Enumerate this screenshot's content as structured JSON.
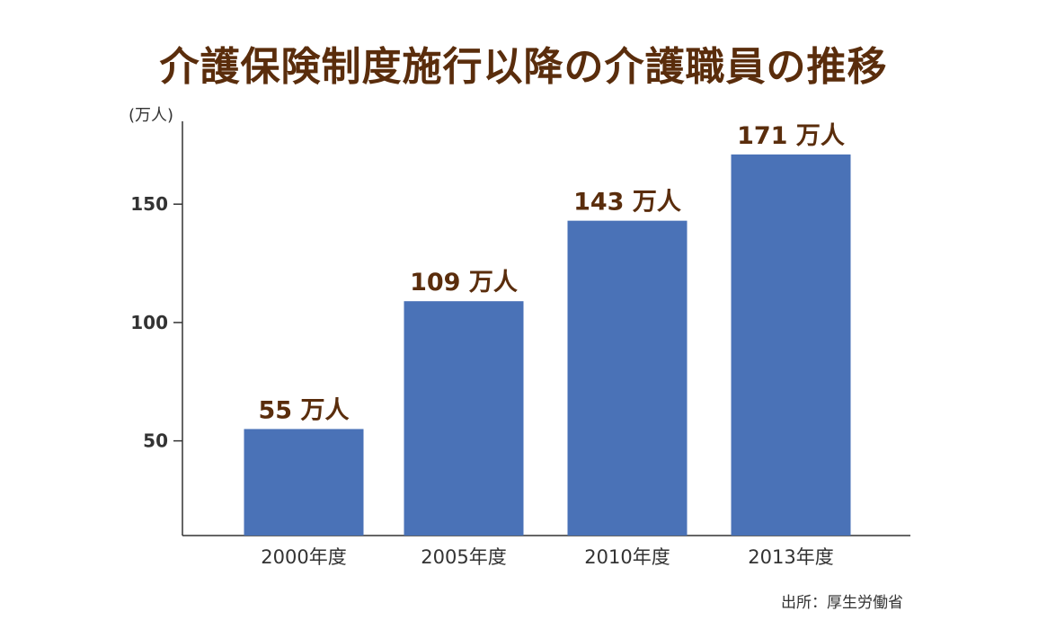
{
  "chart_data": {
    "type": "bar",
    "title": "介護保険制度施行以降の介護職員の推移",
    "ylabel": "(万人)",
    "xlabel": "",
    "categories": [
      "2000年度",
      "2005年度",
      "2010年度",
      "2013年度"
    ],
    "values": [
      55,
      109,
      143,
      171
    ],
    "value_labels": [
      "55 万人",
      "109 万人",
      "143 万人",
      "171 万人"
    ],
    "yticks": [
      50,
      100,
      150
    ],
    "ytick_labels": [
      "50",
      "100",
      "150"
    ],
    "ylim": [
      10,
      185
    ],
    "grid": false,
    "legend": "none",
    "colors": {
      "bar": "#4a72b7",
      "title": "#5a2d0c",
      "value_label": "#5a2d0c",
      "axis": "#333333"
    }
  },
  "source": "出所：厚生労働省"
}
